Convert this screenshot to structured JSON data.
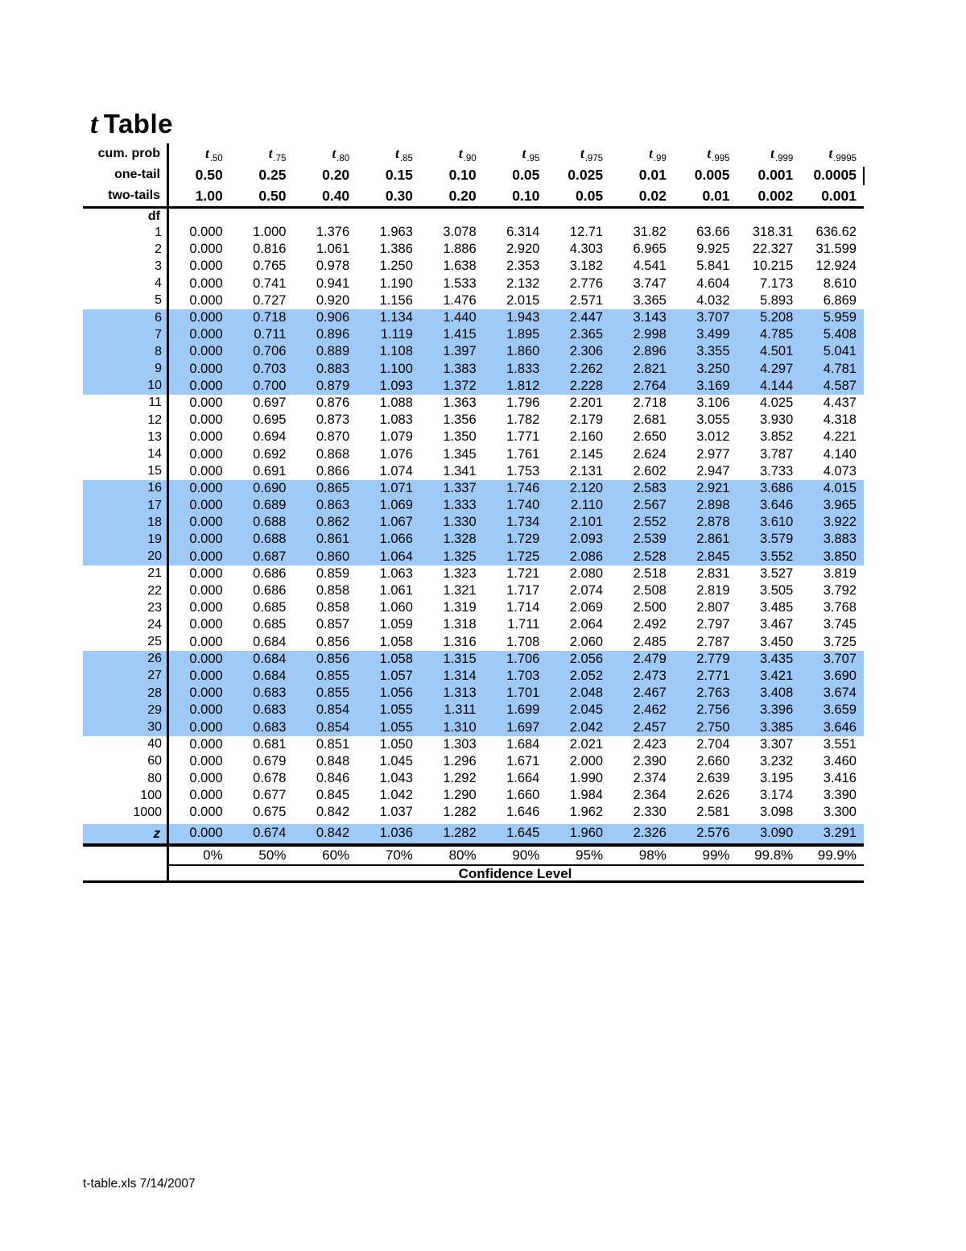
{
  "title": {
    "t": "t",
    "rest": "Table"
  },
  "header": {
    "cum_prob_label": "cum. prob",
    "one_tail_label": "one-tail",
    "two_tails_label": "two-tails",
    "df_label": "df",
    "t_label": "t",
    "t_subs": [
      ".50",
      ".75",
      ".80",
      ".85",
      ".90",
      ".95",
      ".975",
      ".99",
      ".995",
      ".999",
      ".9995"
    ],
    "one_tail": [
      "0.50",
      "0.25",
      "0.20",
      "0.15",
      "0.10",
      "0.05",
      "0.025",
      "0.01",
      "0.005",
      "0.001",
      "0.0005"
    ],
    "two_tails": [
      "1.00",
      "0.50",
      "0.40",
      "0.30",
      "0.20",
      "0.10",
      "0.05",
      "0.02",
      "0.01",
      "0.002",
      "0.001"
    ]
  },
  "table": {
    "rows": [
      {
        "df": "1",
        "hl": false,
        "v": [
          "0.000",
          "1.000",
          "1.376",
          "1.963",
          "3.078",
          "6.314",
          "12.71",
          "31.82",
          "63.66",
          "318.31",
          "636.62"
        ]
      },
      {
        "df": "2",
        "hl": false,
        "v": [
          "0.000",
          "0.816",
          "1.061",
          "1.386",
          "1.886",
          "2.920",
          "4.303",
          "6.965",
          "9.925",
          "22.327",
          "31.599"
        ]
      },
      {
        "df": "3",
        "hl": false,
        "v": [
          "0.000",
          "0.765",
          "0.978",
          "1.250",
          "1.638",
          "2.353",
          "3.182",
          "4.541",
          "5.841",
          "10.215",
          "12.924"
        ]
      },
      {
        "df": "4",
        "hl": false,
        "v": [
          "0.000",
          "0.741",
          "0.941",
          "1.190",
          "1.533",
          "2.132",
          "2.776",
          "3.747",
          "4.604",
          "7.173",
          "8.610"
        ]
      },
      {
        "df": "5",
        "hl": false,
        "v": [
          "0.000",
          "0.727",
          "0.920",
          "1.156",
          "1.476",
          "2.015",
          "2.571",
          "3.365",
          "4.032",
          "5.893",
          "6.869"
        ]
      },
      {
        "df": "6",
        "hl": true,
        "v": [
          "0.000",
          "0.718",
          "0.906",
          "1.134",
          "1.440",
          "1.943",
          "2.447",
          "3.143",
          "3.707",
          "5.208",
          "5.959"
        ]
      },
      {
        "df": "7",
        "hl": true,
        "v": [
          "0.000",
          "0.711",
          "0.896",
          "1.119",
          "1.415",
          "1.895",
          "2.365",
          "2.998",
          "3.499",
          "4.785",
          "5.408"
        ]
      },
      {
        "df": "8",
        "hl": true,
        "v": [
          "0.000",
          "0.706",
          "0.889",
          "1.108",
          "1.397",
          "1.860",
          "2.306",
          "2.896",
          "3.355",
          "4.501",
          "5.041"
        ]
      },
      {
        "df": "9",
        "hl": true,
        "v": [
          "0.000",
          "0.703",
          "0.883",
          "1.100",
          "1.383",
          "1.833",
          "2.262",
          "2.821",
          "3.250",
          "4.297",
          "4.781"
        ]
      },
      {
        "df": "10",
        "hl": true,
        "v": [
          "0.000",
          "0.700",
          "0.879",
          "1.093",
          "1.372",
          "1.812",
          "2.228",
          "2.764",
          "3.169",
          "4.144",
          "4.587"
        ]
      },
      {
        "df": "11",
        "hl": false,
        "v": [
          "0.000",
          "0.697",
          "0.876",
          "1.088",
          "1.363",
          "1.796",
          "2.201",
          "2.718",
          "3.106",
          "4.025",
          "4.437"
        ]
      },
      {
        "df": "12",
        "hl": false,
        "v": [
          "0.000",
          "0.695",
          "0.873",
          "1.083",
          "1.356",
          "1.782",
          "2.179",
          "2.681",
          "3.055",
          "3.930",
          "4.318"
        ]
      },
      {
        "df": "13",
        "hl": false,
        "v": [
          "0.000",
          "0.694",
          "0.870",
          "1.079",
          "1.350",
          "1.771",
          "2.160",
          "2.650",
          "3.012",
          "3.852",
          "4.221"
        ]
      },
      {
        "df": "14",
        "hl": false,
        "v": [
          "0.000",
          "0.692",
          "0.868",
          "1.076",
          "1.345",
          "1.761",
          "2.145",
          "2.624",
          "2.977",
          "3.787",
          "4.140"
        ]
      },
      {
        "df": "15",
        "hl": false,
        "v": [
          "0.000",
          "0.691",
          "0.866",
          "1.074",
          "1.341",
          "1.753",
          "2.131",
          "2.602",
          "2.947",
          "3.733",
          "4.073"
        ]
      },
      {
        "df": "16",
        "hl": true,
        "v": [
          "0.000",
          "0.690",
          "0.865",
          "1.071",
          "1.337",
          "1.746",
          "2.120",
          "2.583",
          "2.921",
          "3.686",
          "4.015"
        ]
      },
      {
        "df": "17",
        "hl": true,
        "v": [
          "0.000",
          "0.689",
          "0.863",
          "1.069",
          "1.333",
          "1.740",
          "2.110",
          "2.567",
          "2.898",
          "3.646",
          "3.965"
        ]
      },
      {
        "df": "18",
        "hl": true,
        "v": [
          "0.000",
          "0.688",
          "0.862",
          "1.067",
          "1.330",
          "1.734",
          "2.101",
          "2.552",
          "2.878",
          "3.610",
          "3.922"
        ]
      },
      {
        "df": "19",
        "hl": true,
        "v": [
          "0.000",
          "0.688",
          "0.861",
          "1.066",
          "1.328",
          "1.729",
          "2.093",
          "2.539",
          "2.861",
          "3.579",
          "3.883"
        ]
      },
      {
        "df": "20",
        "hl": true,
        "v": [
          "0.000",
          "0.687",
          "0.860",
          "1.064",
          "1.325",
          "1.725",
          "2.086",
          "2.528",
          "2.845",
          "3.552",
          "3.850"
        ]
      },
      {
        "df": "21",
        "hl": false,
        "v": [
          "0.000",
          "0.686",
          "0.859",
          "1.063",
          "1.323",
          "1.721",
          "2.080",
          "2.518",
          "2.831",
          "3.527",
          "3.819"
        ]
      },
      {
        "df": "22",
        "hl": false,
        "v": [
          "0.000",
          "0.686",
          "0.858",
          "1.061",
          "1.321",
          "1.717",
          "2.074",
          "2.508",
          "2.819",
          "3.505",
          "3.792"
        ]
      },
      {
        "df": "23",
        "hl": false,
        "v": [
          "0.000",
          "0.685",
          "0.858",
          "1.060",
          "1.319",
          "1.714",
          "2.069",
          "2.500",
          "2.807",
          "3.485",
          "3.768"
        ]
      },
      {
        "df": "24",
        "hl": false,
        "v": [
          "0.000",
          "0.685",
          "0.857",
          "1.059",
          "1.318",
          "1.711",
          "2.064",
          "2.492",
          "2.797",
          "3.467",
          "3.745"
        ]
      },
      {
        "df": "25",
        "hl": false,
        "v": [
          "0.000",
          "0.684",
          "0.856",
          "1.058",
          "1.316",
          "1.708",
          "2.060",
          "2.485",
          "2.787",
          "3.450",
          "3.725"
        ]
      },
      {
        "df": "26",
        "hl": true,
        "v": [
          "0.000",
          "0.684",
          "0.856",
          "1.058",
          "1.315",
          "1.706",
          "2.056",
          "2.479",
          "2.779",
          "3.435",
          "3.707"
        ]
      },
      {
        "df": "27",
        "hl": true,
        "v": [
          "0.000",
          "0.684",
          "0.855",
          "1.057",
          "1.314",
          "1.703",
          "2.052",
          "2.473",
          "2.771",
          "3.421",
          "3.690"
        ]
      },
      {
        "df": "28",
        "hl": true,
        "v": [
          "0.000",
          "0.683",
          "0.855",
          "1.056",
          "1.313",
          "1.701",
          "2.048",
          "2.467",
          "2.763",
          "3.408",
          "3.674"
        ]
      },
      {
        "df": "29",
        "hl": true,
        "v": [
          "0.000",
          "0.683",
          "0.854",
          "1.055",
          "1.311",
          "1.699",
          "2.045",
          "2.462",
          "2.756",
          "3.396",
          "3.659"
        ]
      },
      {
        "df": "30",
        "hl": true,
        "v": [
          "0.000",
          "0.683",
          "0.854",
          "1.055",
          "1.310",
          "1.697",
          "2.042",
          "2.457",
          "2.750",
          "3.385",
          "3.646"
        ]
      },
      {
        "df": "40",
        "hl": false,
        "v": [
          "0.000",
          "0.681",
          "0.851",
          "1.050",
          "1.303",
          "1.684",
          "2.021",
          "2.423",
          "2.704",
          "3.307",
          "3.551"
        ]
      },
      {
        "df": "60",
        "hl": false,
        "v": [
          "0.000",
          "0.679",
          "0.848",
          "1.045",
          "1.296",
          "1.671",
          "2.000",
          "2.390",
          "2.660",
          "3.232",
          "3.460"
        ]
      },
      {
        "df": "80",
        "hl": false,
        "v": [
          "0.000",
          "0.678",
          "0.846",
          "1.043",
          "1.292",
          "1.664",
          "1.990",
          "2.374",
          "2.639",
          "3.195",
          "3.416"
        ]
      },
      {
        "df": "100",
        "hl": false,
        "v": [
          "0.000",
          "0.677",
          "0.845",
          "1.042",
          "1.290",
          "1.660",
          "1.984",
          "2.364",
          "2.626",
          "3.174",
          "3.390"
        ]
      },
      {
        "df": "1000",
        "hl": false,
        "v": [
          "0.000",
          "0.675",
          "0.842",
          "1.037",
          "1.282",
          "1.646",
          "1.962",
          "2.330",
          "2.581",
          "3.098",
          "3.300"
        ]
      }
    ],
    "z_row": {
      "label": "z",
      "hl": true,
      "v": [
        "0.000",
        "0.674",
        "0.842",
        "1.036",
        "1.282",
        "1.645",
        "1.960",
        "2.326",
        "2.576",
        "3.090",
        "3.291"
      ]
    }
  },
  "footer_rows": {
    "percents": [
      "0%",
      "50%",
      "60%",
      "70%",
      "80%",
      "90%",
      "95%",
      "98%",
      "99%",
      "99.8%",
      "99.9%"
    ],
    "confidence_label": "Confidence Level"
  },
  "page_footer": "t-table.xls 7/14/2007",
  "colors": {
    "highlight": "#9FCAF7",
    "line": "#000000"
  }
}
